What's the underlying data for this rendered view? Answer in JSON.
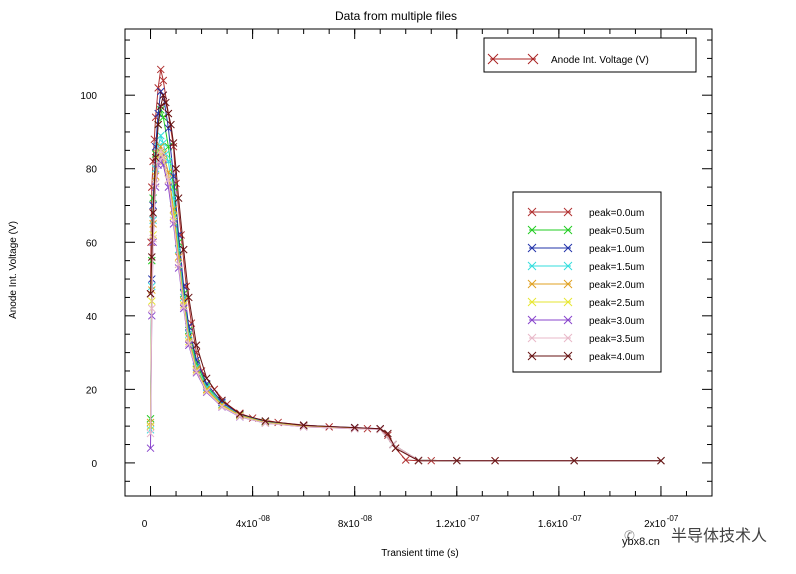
{
  "chart_data": {
    "type": "line",
    "title": "Data from multiple files",
    "xlabel": "Transient time (s)",
    "ylabel": "Anode Int. Voltage (V)",
    "xlim": [
      -1e-08,
      2.2e-07
    ],
    "ylim": [
      -9,
      118
    ],
    "x_ticks": [
      {
        "value": 0,
        "label": "0"
      },
      {
        "value": 4e-08,
        "label": "4x10",
        "exp": "-08"
      },
      {
        "value": 8e-08,
        "label": "8x10",
        "exp": "-08"
      },
      {
        "value": 1.2e-07,
        "label": "1.2x10",
        "exp": "-07"
      },
      {
        "value": 1.6e-07,
        "label": "1.6x10",
        "exp": "-07"
      },
      {
        "value": 2e-07,
        "label": "2x10",
        "exp": "-07"
      }
    ],
    "y_ticks": [
      0,
      20,
      40,
      60,
      80,
      100
    ],
    "top_legend": {
      "label": "Anode Int. Voltage (V)",
      "color": "#aa2222"
    },
    "series": [
      {
        "name": "peak=0.0um",
        "color": "#b03030",
        "x": [
          0,
          2e-10,
          5e-10,
          1e-09,
          1.5e-09,
          2e-09,
          3e-09,
          4e-09,
          5e-09,
          7e-09,
          9e-09,
          1e-08,
          1.2e-08,
          1.4e-08,
          1.6e-08,
          1.8e-08,
          2e-08,
          2.5e-08,
          3e-08,
          3.5e-08,
          4e-08,
          5e-08,
          6e-08,
          7e-08,
          8e-08,
          8.5e-08,
          9e-08,
          9.3e-08,
          9.6e-08,
          1e-07,
          1.05e-07,
          1.1e-07,
          1.2e-07,
          1.35e-07,
          1.66e-07,
          2e-07
        ],
        "y": [
          46,
          60,
          75,
          82,
          88,
          94,
          102,
          107,
          104,
          95,
          86,
          76,
          62,
          48,
          38,
          30,
          25,
          20,
          16,
          13.5,
          12.2,
          11,
          10.3,
          9.8,
          9.5,
          9.3,
          9.2,
          7.5,
          4,
          0.8,
          0.6,
          0.6,
          0.6,
          0.6,
          0.6,
          0.6
        ]
      },
      {
        "name": "peak=0.5um",
        "color": "#22cc22",
        "x": [
          0,
          5e-10,
          1e-09,
          2e-09,
          3e-09,
          4e-09,
          5e-09,
          7e-09,
          9e-09,
          1.1e-08,
          1.3e-08,
          1.5e-08,
          1.8e-08,
          2.2e-08,
          2.8e-08,
          3.5e-08,
          4.5e-08,
          6e-08,
          8e-08,
          9e-08,
          9.5e-08,
          1.05e-07,
          1.2e-07,
          1.66e-07,
          2e-07
        ],
        "y": [
          12,
          55,
          72,
          84,
          92,
          96,
          94,
          86,
          75,
          60,
          46,
          36,
          27,
          21,
          16,
          13,
          11.2,
          10.1,
          9.5,
          9.2,
          5,
          0.7,
          0.6,
          0.6,
          0.6
        ]
      },
      {
        "name": "peak=1.0um",
        "color": "#2233aa",
        "x": [
          0,
          5e-10,
          1e-09,
          2e-09,
          3e-09,
          4e-09,
          5e-09,
          7e-09,
          9e-09,
          1.1e-08,
          1.3e-08,
          1.5e-08,
          1.8e-08,
          2.2e-08,
          2.8e-08,
          3.5e-08,
          4.5e-08,
          6e-08,
          8e-08,
          9e-08,
          9.5e-08,
          1.05e-07,
          1.2e-07,
          1.66e-07,
          2e-07
        ],
        "y": [
          10,
          50,
          70,
          86,
          95,
          101,
          100,
          91,
          78,
          62,
          48,
          37,
          28,
          21.5,
          16.5,
          13.2,
          11.3,
          10.2,
          9.6,
          9.3,
          5,
          0.7,
          0.6,
          0.6,
          0.6
        ]
      },
      {
        "name": "peak=1.5um",
        "color": "#33dddd",
        "x": [
          0,
          5e-10,
          1e-09,
          2e-09,
          3e-09,
          4e-09,
          5e-09,
          6e-09,
          7e-09,
          9e-09,
          1.1e-08,
          1.3e-08,
          1.5e-08,
          1.8e-08,
          2.2e-08,
          2.8e-08,
          3.5e-08,
          4.5e-08,
          6e-08,
          8e-08,
          9e-08,
          9.5e-08,
          1.05e-07,
          1.2e-07,
          1.66e-07,
          2e-07
        ],
        "y": [
          9,
          48,
          66,
          80,
          86,
          89,
          87,
          84,
          82,
          72,
          58,
          45,
          35,
          26,
          20.5,
          16,
          13,
          11.1,
          10,
          9.5,
          9.2,
          5,
          0.7,
          0.6,
          0.6,
          0.6
        ]
      },
      {
        "name": "peak=2.0um",
        "color": "#e0a020",
        "x": [
          0,
          5e-10,
          1e-09,
          2e-09,
          3e-09,
          4e-09,
          5e-09,
          7e-09,
          9e-09,
          1.1e-08,
          1.3e-08,
          1.5e-08,
          1.8e-08,
          2.2e-08,
          2.8e-08,
          3.5e-08,
          4.5e-08,
          6e-08,
          8e-08,
          9e-08,
          9.5e-08,
          1.05e-07,
          1.2e-07,
          1.66e-07,
          2e-07
        ],
        "y": [
          11,
          47,
          65,
          78,
          84,
          86,
          84,
          79,
          69,
          56,
          44,
          34,
          25.5,
          20,
          15.8,
          12.9,
          11,
          10,
          9.4,
          9.2,
          5,
          0.7,
          0.6,
          0.6,
          0.6
        ]
      },
      {
        "name": "peak=2.5um",
        "color": "#e6e630",
        "x": [
          0,
          5e-10,
          1e-09,
          2e-09,
          3e-09,
          4e-09,
          5e-09,
          7e-09,
          9e-09,
          1.1e-08,
          1.3e-08,
          1.5e-08,
          1.8e-08,
          2.2e-08,
          2.8e-08,
          3.5e-08,
          4.5e-08,
          6e-08,
          8e-08,
          9e-08,
          9.5e-08,
          1.05e-07,
          1.2e-07,
          1.66e-07,
          2e-07
        ],
        "y": [
          10,
          44,
          62,
          76,
          82,
          84,
          82,
          77,
          67,
          54,
          43,
          33,
          25,
          19.6,
          15.5,
          12.7,
          10.9,
          9.9,
          9.4,
          9.1,
          5,
          0.7,
          0.6,
          0.6,
          0.6
        ]
      },
      {
        "name": "peak=3.0um",
        "color": "#8844cc",
        "x": [
          0,
          5e-10,
          1e-09,
          2e-09,
          3e-09,
          4e-09,
          5e-09,
          7e-09,
          9e-09,
          1.1e-08,
          1.3e-08,
          1.5e-08,
          1.8e-08,
          2.2e-08,
          2.8e-08,
          3.5e-08,
          4.5e-08,
          6e-08,
          8e-08,
          9e-08,
          9.5e-08,
          1.05e-07,
          1.2e-07,
          1.66e-07,
          2e-07
        ],
        "y": [
          4,
          40,
          60,
          75,
          81,
          83,
          81,
          75,
          65,
          53,
          42,
          32,
          24.5,
          19.2,
          15.2,
          12.5,
          10.8,
          9.8,
          9.3,
          9.1,
          5,
          0.7,
          0.6,
          0.6,
          0.6
        ]
      },
      {
        "name": "peak=3.5um",
        "color": "#e8b8c8",
        "x": [
          0,
          5e-10,
          1e-09,
          2e-09,
          3e-09,
          4e-09,
          5e-09,
          7e-09,
          9e-09,
          1.1e-08,
          1.3e-08,
          1.5e-08,
          1.8e-08,
          2.2e-08,
          2.8e-08,
          3.5e-08,
          4.5e-08,
          6e-08,
          8e-08,
          9e-08,
          9.5e-08,
          1.05e-07,
          1.2e-07,
          1.66e-07,
          2e-07
        ],
        "y": [
          8,
          42,
          61,
          76,
          82,
          85,
          83,
          77,
          66,
          54,
          42.5,
          32.5,
          24.8,
          19.4,
          15.3,
          12.6,
          10.8,
          9.8,
          9.3,
          9.1,
          5,
          0.7,
          0.6,
          0.6,
          0.6
        ]
      },
      {
        "name": "peak=4.0um",
        "color": "#661111",
        "x": [
          0,
          5e-10,
          1e-09,
          2e-09,
          3e-09,
          4e-09,
          5e-09,
          6e-09,
          7e-09,
          8e-09,
          9e-09,
          1e-08,
          1.1e-08,
          1.3e-08,
          1.5e-08,
          1.8e-08,
          2.2e-08,
          2.8e-08,
          3.5e-08,
          4.5e-08,
          6e-08,
          8e-08,
          9e-08,
          9.3e-08,
          9.6e-08,
          1.05e-07,
          1.2e-07,
          1.35e-07,
          1.66e-07,
          2e-07
        ],
        "y": [
          46,
          56,
          68,
          83,
          92,
          97,
          100,
          98,
          95,
          92,
          87,
          80,
          72,
          58,
          45,
          32,
          23,
          17,
          13.3,
          11.4,
          10.2,
          9.6,
          9.3,
          8,
          4,
          0.6,
          0.6,
          0.6,
          0.6,
          0.6
        ]
      }
    ]
  },
  "watermark": {
    "cn_text": "半导体技术人",
    "url_text": "ybx8.cn"
  }
}
